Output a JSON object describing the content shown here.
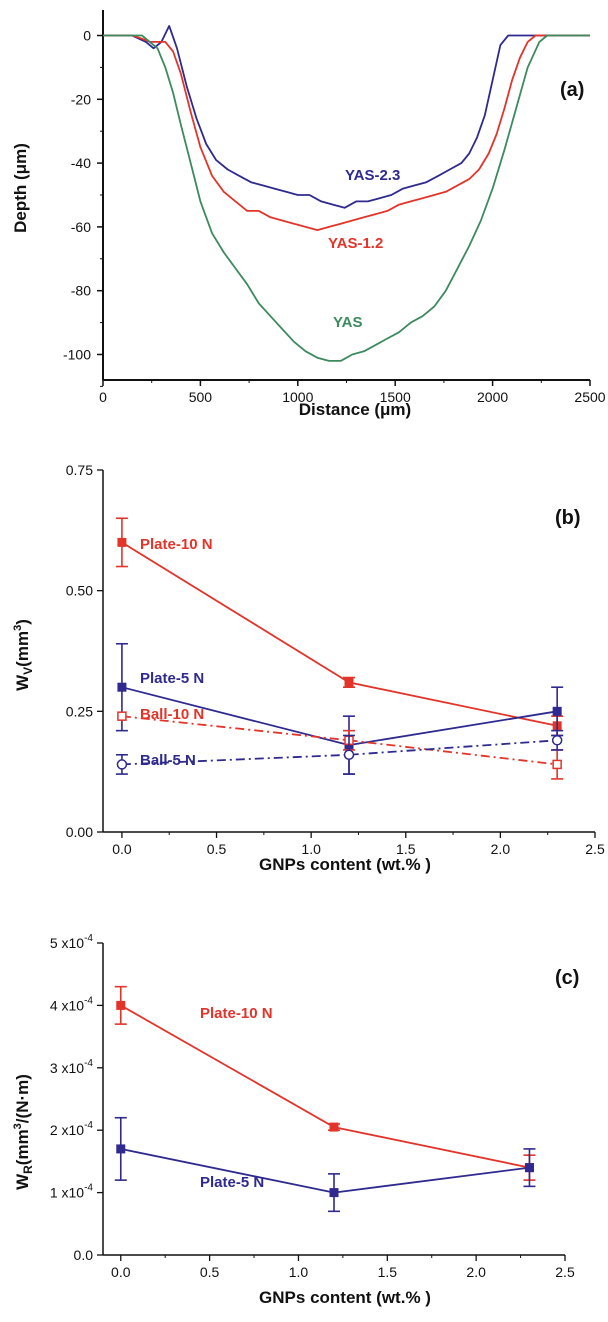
{
  "chart_data": [
    {
      "panel": "(a)",
      "type": "line",
      "xlabel": "Distance (μm)",
      "ylabel": "Depth (μm)",
      "xlim": [
        0,
        2500
      ],
      "ylim": [
        -108,
        8
      ],
      "xticks": [
        0,
        500,
        1000,
        1500,
        2000,
        2500
      ],
      "yticks": [
        0,
        -20,
        -40,
        -60,
        -80,
        -100
      ],
      "series": [
        {
          "name": "YAS-2.3",
          "color": "#2e2a8f",
          "x": [
            0,
            150,
            220,
            260,
            300,
            340,
            380,
            430,
            480,
            530,
            580,
            640,
            700,
            760,
            820,
            880,
            940,
            1000,
            1060,
            1120,
            1180,
            1240,
            1300,
            1360,
            1420,
            1480,
            1540,
            1600,
            1660,
            1720,
            1780,
            1840,
            1880,
            1920,
            1960,
            2000,
            2040,
            2080,
            2200,
            2300,
            2400,
            2500
          ],
          "y": [
            0,
            0,
            -2,
            -4,
            -2,
            3,
            -4,
            -16,
            -26,
            -34,
            -39,
            -42,
            -44,
            -46,
            -47,
            -48,
            -49,
            -50,
            -50,
            -52,
            -53,
            -54,
            -52,
            -52,
            -51,
            -50,
            -48,
            -47,
            -46,
            -44,
            -42,
            -40,
            -37,
            -32,
            -25,
            -14,
            -3,
            0,
            0,
            0,
            0,
            0
          ]
        },
        {
          "name": "YAS-1.2",
          "color": "#e3342a",
          "x": [
            0,
            150,
            200,
            240,
            280,
            320,
            360,
            400,
            450,
            500,
            560,
            620,
            680,
            740,
            800,
            860,
            920,
            980,
            1040,
            1100,
            1160,
            1220,
            1280,
            1340,
            1400,
            1460,
            1520,
            1580,
            1640,
            1700,
            1760,
            1820,
            1880,
            1930,
            1980,
            2020,
            2060,
            2100,
            2140,
            2180,
            2220,
            2260,
            2400,
            2500
          ],
          "y": [
            0,
            0,
            -1,
            -2,
            -2,
            -2,
            -5,
            -12,
            -24,
            -35,
            -44,
            -49,
            -52,
            -55,
            -55,
            -57,
            -58,
            -59,
            -60,
            -61,
            -60,
            -59,
            -58,
            -57,
            -56,
            -55,
            -53,
            -52,
            -51,
            -50,
            -49,
            -47,
            -45,
            -42,
            -37,
            -31,
            -23,
            -14,
            -7,
            -2,
            0,
            0,
            0,
            0
          ]
        },
        {
          "name": "YAS",
          "color": "#3d8a5f",
          "x": [
            0,
            150,
            200,
            240,
            280,
            320,
            360,
            400,
            450,
            500,
            560,
            620,
            680,
            740,
            800,
            860,
            920,
            980,
            1040,
            1100,
            1160,
            1220,
            1280,
            1340,
            1400,
            1460,
            1520,
            1580,
            1640,
            1700,
            1760,
            1820,
            1880,
            1940,
            2000,
            2060,
            2120,
            2180,
            2240,
            2280,
            2320,
            2400,
            2500
          ],
          "y": [
            0,
            0,
            0,
            -2,
            -4,
            -10,
            -18,
            -28,
            -40,
            -52,
            -62,
            -68,
            -73,
            -78,
            -84,
            -88,
            -92,
            -96,
            -99,
            -101,
            -102,
            -102,
            -100,
            -99,
            -97,
            -95,
            -93,
            -90,
            -88,
            -85,
            -80,
            -73,
            -66,
            -58,
            -48,
            -36,
            -23,
            -10,
            -2,
            0,
            0,
            0,
            0
          ]
        }
      ],
      "annotations": [
        "YAS-2.3",
        "YAS-1.2",
        "YAS"
      ]
    },
    {
      "panel": "(b)",
      "type": "line",
      "xlabel": "GNPs content (wt.% )",
      "ylabel_main": "W",
      "ylabel_sub": "V",
      "ylabel_rest": "(mm",
      "ylabel_sup": "3",
      "ylabel_close": ")",
      "xlim": [
        -0.1,
        2.5
      ],
      "ylim": [
        0,
        0.75
      ],
      "xticks": [
        "0.0",
        "0.5",
        "1.0",
        "1.5",
        "2.0",
        "2.5"
      ],
      "yticks": [
        "0.00",
        "0.25",
        "0.50",
        "0.75"
      ],
      "x": [
        0,
        1.2,
        2.3
      ],
      "series": [
        {
          "name": "Plate-10 N",
          "color": "#e3342a",
          "style": "solid",
          "marker": "square-filled",
          "values": [
            0.6,
            0.31,
            0.22
          ],
          "errors": [
            0.05,
            0.01,
            0.02
          ]
        },
        {
          "name": "Plate-5 N",
          "color": "#2e2a8f",
          "style": "solid",
          "marker": "square-filled",
          "values": [
            0.3,
            0.18,
            0.25
          ],
          "errors": [
            0.09,
            0.06,
            0.05
          ]
        },
        {
          "name": "Ball-10 N",
          "color": "#e3342a",
          "style": "dashdot",
          "marker": "square-open",
          "values": [
            0.24,
            0.19,
            0.14
          ],
          "errors": [
            0.0,
            0.02,
            0.03
          ]
        },
        {
          "name": "Ball-5 N",
          "color": "#2e2a8f",
          "style": "dashdot",
          "marker": "circle-open",
          "values": [
            0.14,
            0.16,
            0.19
          ],
          "errors": [
            0.02,
            0.04,
            0.02
          ]
        }
      ]
    },
    {
      "panel": "(c)",
      "type": "line",
      "xlabel": "GNPs content (wt.% )",
      "ylabel_main": "W",
      "ylabel_sub": "R",
      "ylabel_rest": "(mm",
      "ylabel_sup": "3",
      "ylabel_close": "/(N·m)",
      "xlim": [
        -0.1,
        2.5
      ],
      "ylim": [
        0,
        5
      ],
      "xticks": [
        "0.0",
        "0.5",
        "1.0",
        "1.5",
        "2.0",
        "2.5"
      ],
      "ytick_mantissas": [
        "0.0",
        "1 x10",
        "2 x10",
        "3 x10",
        "4 x10",
        "5 x10"
      ],
      "ytick_exp": "-4",
      "x": [
        0,
        1.2,
        2.3
      ],
      "units_note": "values in 1e-4 mm3/(N·m)",
      "series": [
        {
          "name": "Plate-10 N",
          "color": "#e3342a",
          "style": "solid",
          "marker": "square-filled",
          "values": [
            4.0,
            2.05,
            1.4
          ],
          "errors": [
            0.3,
            0.05,
            0.2
          ]
        },
        {
          "name": "Plate-5 N",
          "color": "#2e2a8f",
          "style": "solid",
          "marker": "square-filled",
          "values": [
            1.7,
            1.0,
            1.4
          ],
          "errors": [
            0.5,
            0.3,
            0.3
          ]
        }
      ]
    }
  ]
}
